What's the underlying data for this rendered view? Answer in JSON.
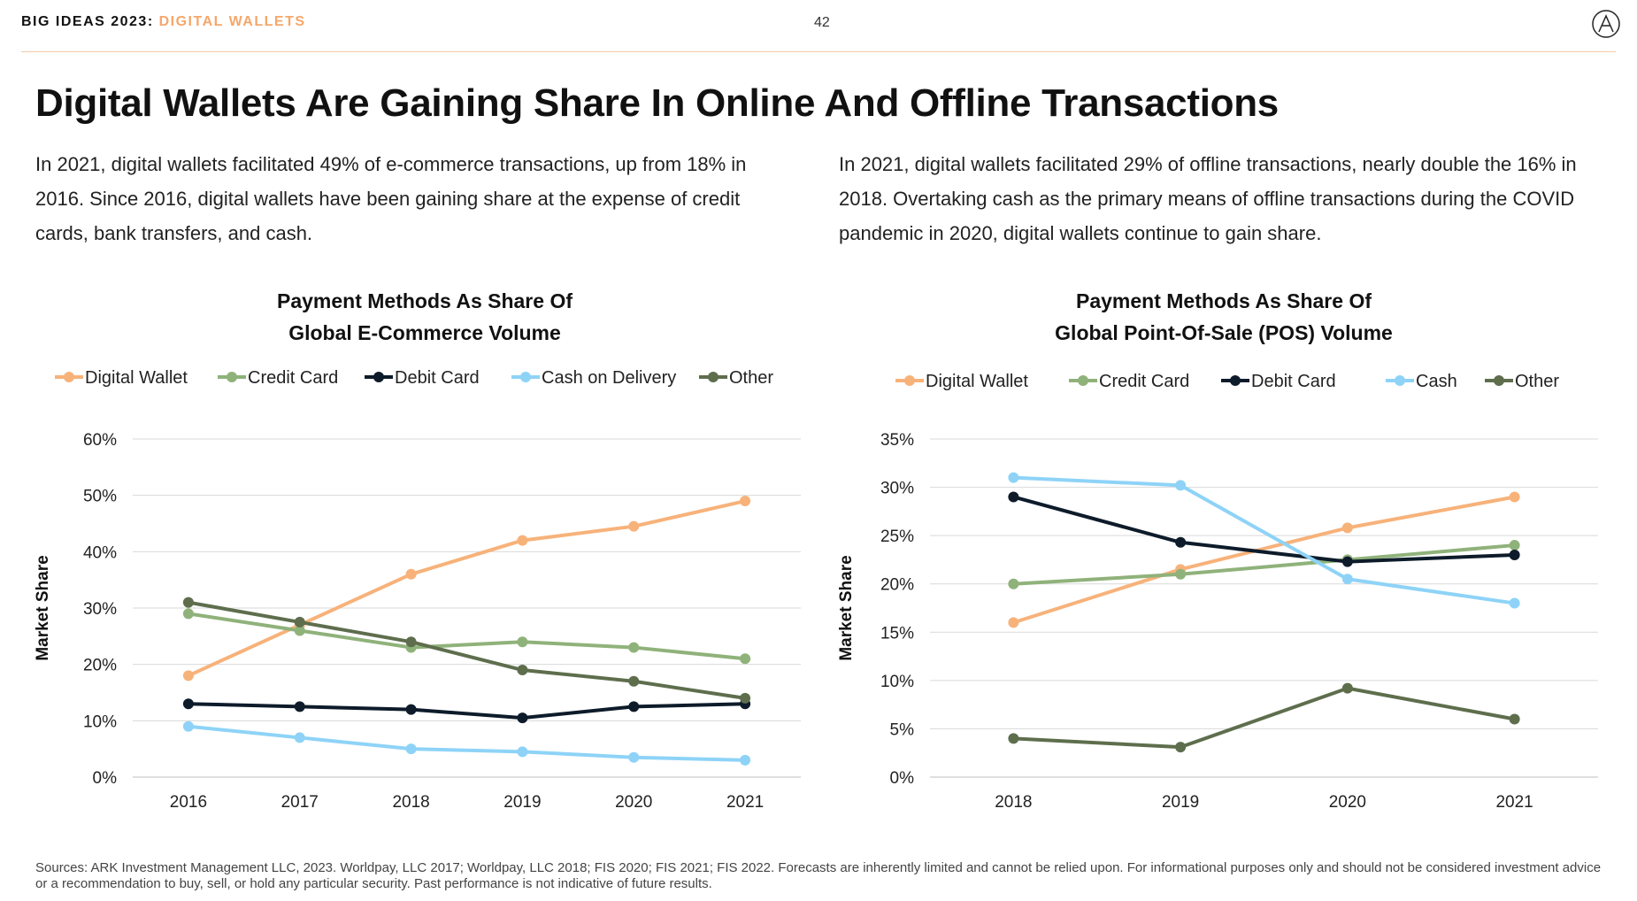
{
  "header": {
    "prefix": "BIG IDEAS 2023:",
    "series": "DIGITAL WALLETS",
    "page_number": "42"
  },
  "title": "Digital Wallets Are Gaining Share In Online And Offline Transactions",
  "paragraphs": {
    "left": "In 2021, digital wallets facilitated 49% of e-commerce transactions, up from 18% in 2016. Since 2016, digital wallets have been gaining share at the expense of credit cards, bank transfers, and cash.",
    "right": "In 2021, digital wallets facilitated 29% of offline transactions, nearly double the 16% in 2018. Overtaking cash as the primary means of offline transactions during the COVID pandemic in 2020, digital wallets continue to gain share."
  },
  "colors": {
    "digital_wallet": "#f7b27a",
    "credit_card": "#8fb27a",
    "debit_card": "#0d1b2a",
    "cash": "#8ed3f7",
    "other": "#5e6e4d",
    "grid": "#d9d9d9",
    "accent": "#f5a76c"
  },
  "chart_data": [
    {
      "type": "line",
      "title_line1": "Payment Methods As Share Of",
      "title_line2": "Global E-Commerce Volume",
      "ylabel": "Market Share",
      "xlabel": "",
      "ylim": [
        0,
        60
      ],
      "yticks": [
        0,
        10,
        20,
        30,
        40,
        50,
        60
      ],
      "ytick_labels": [
        "0%",
        "10%",
        "20%",
        "30%",
        "40%",
        "50%",
        "60%"
      ],
      "categories": [
        "2016",
        "2017",
        "2018",
        "2019",
        "2020",
        "2021"
      ],
      "legend_position": "top",
      "series": [
        {
          "name": "Digital Wallet",
          "color_key": "digital_wallet",
          "values": [
            18,
            27,
            36,
            42,
            44.5,
            49
          ]
        },
        {
          "name": "Credit Card",
          "color_key": "credit_card",
          "values": [
            29,
            26,
            23,
            24,
            23,
            21
          ]
        },
        {
          "name": "Debit Card",
          "color_key": "debit_card",
          "values": [
            13,
            12.5,
            12,
            10.5,
            12.5,
            13
          ]
        },
        {
          "name": "Cash on Delivery",
          "color_key": "cash",
          "values": [
            9,
            7,
            5,
            4.5,
            3.5,
            3
          ]
        },
        {
          "name": "Other",
          "color_key": "other",
          "values": [
            31,
            27.5,
            24,
            19,
            17,
            14
          ]
        }
      ]
    },
    {
      "type": "line",
      "title_line1": "Payment Methods As Share Of",
      "title_line2": "Global Point-Of-Sale (POS) Volume",
      "ylabel": "Market Share",
      "xlabel": "",
      "ylim": [
        0,
        35
      ],
      "yticks": [
        0,
        5,
        10,
        15,
        20,
        25,
        30,
        35
      ],
      "ytick_labels": [
        "0%",
        "5%",
        "10%",
        "15%",
        "20%",
        "25%",
        "30%",
        "35%"
      ],
      "categories": [
        "2018",
        "2019",
        "2020",
        "2021"
      ],
      "legend_position": "top",
      "series": [
        {
          "name": "Digital Wallet",
          "color_key": "digital_wallet",
          "values": [
            16,
            21.5,
            25.8,
            29
          ]
        },
        {
          "name": "Credit Card",
          "color_key": "credit_card",
          "values": [
            20,
            21,
            22.5,
            24
          ]
        },
        {
          "name": "Debit Card",
          "color_key": "debit_card",
          "values": [
            29,
            24.3,
            22.3,
            23
          ]
        },
        {
          "name": "Cash",
          "color_key": "cash",
          "values": [
            31,
            30.2,
            20.5,
            18
          ]
        },
        {
          "name": "Other",
          "color_key": "other",
          "values": [
            4,
            3.1,
            9.2,
            6
          ]
        }
      ]
    }
  ],
  "sources": "Sources: ARK Investment Management LLC, 2023. Worldpay, LLC  2017; Worldpay, LLC  2018; FIS 2020; FIS 2021; FIS 2022. Forecasts are inherently limited and cannot be relied upon. For informational purposes only and should not be considered investment advice or a recommendation to buy, sell, or hold any particular security. Past performance is not indicative of future results."
}
